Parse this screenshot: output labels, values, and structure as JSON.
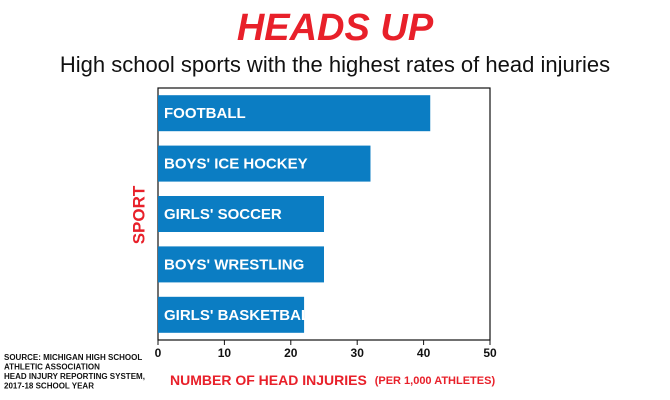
{
  "chart_data": {
    "type": "barh",
    "title": "HEADS UP",
    "subtitle": "High school sports with the highest rates of head injuries",
    "y_label": "SPORT",
    "x_label": "NUMBER OF HEAD INJURIES",
    "x_label_unit": "(PER 1,000 ATHLETES)",
    "categories": [
      "FOOTBALL",
      "BOYS' ICE HOCKEY",
      "GIRLS' SOCCER",
      "BOYS' WRESTLING",
      "GIRLS' BASKETBALL"
    ],
    "values": [
      41,
      32,
      25,
      25,
      22
    ],
    "color": "#0b7dc3",
    "xlim": [
      0,
      50
    ],
    "xticks": [
      0,
      10,
      20,
      30,
      40,
      50
    ],
    "source": [
      "SOURCE: MICHIGAN HIGH SCHOOL",
      "ATHLETIC ASSOCIATION",
      "HEAD INJURY REPORTING SYSTEM,",
      "2017-18 SCHOOL YEAR"
    ]
  }
}
